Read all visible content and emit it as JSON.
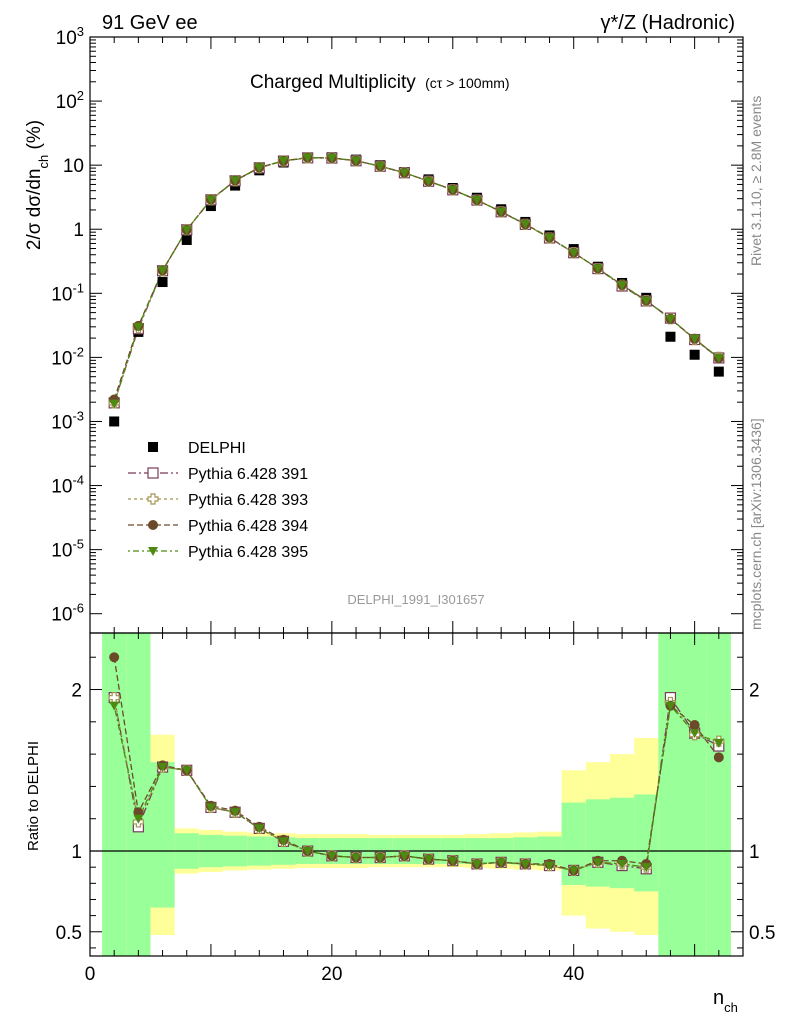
{
  "header": {
    "left": "91 GeV ee",
    "right": "γ*/Z (Hadronic)"
  },
  "side_labels": {
    "rivet": "Rivet 3.1.10, ≥ 2.8M events",
    "mcplots": "mcplots.cern.ch [arXiv:1306.3436]"
  },
  "analysis_id": "DELPHI_1991_I301657",
  "chart_data": [
    {
      "type": "scatter",
      "title": "Charged Multiplicity",
      "title_suffix": "(cτ > 100mm)",
      "ylabel": "2/σ dσ/dn_ch (%)",
      "yscale": "log",
      "ylim": [
        5e-07,
        1000
      ],
      "xlim": [
        0,
        54
      ],
      "y_ticks": [
        "10^-6",
        "10^-5",
        "10^-4",
        "10^-3",
        "10^-2",
        "10^-1",
        "1",
        "10",
        "10^2",
        "10^3"
      ],
      "x": [
        2,
        4,
        6,
        8,
        10,
        12,
        14,
        16,
        18,
        20,
        22,
        24,
        26,
        28,
        30,
        32,
        34,
        36,
        38,
        40,
        42,
        44,
        46,
        48,
        50,
        52
      ],
      "legend_position": "lower-left",
      "series": [
        {
          "name": "DELPHI",
          "style": "data",
          "color": "#000000",
          "values": [
            0.001,
            0.025,
            0.15,
            0.68,
            2.3,
            4.8,
            8.3,
            11.0,
            13.0,
            13.3,
            12.2,
            10.0,
            7.8,
            6.0,
            4.4,
            3.1,
            2.05,
            1.3,
            0.8,
            0.49,
            0.26,
            0.145,
            0.085,
            0.021,
            0.011,
            0.006
          ]
        },
        {
          "name": "Pythia 6.428 391",
          "style": "open-square",
          "color": "#7a3b5a",
          "values": [
            0.00195,
            0.028,
            0.225,
            0.98,
            2.88,
            5.7,
            9.1,
            11.6,
            13.0,
            12.9,
            11.7,
            9.6,
            7.6,
            5.6,
            4.12,
            2.85,
            1.87,
            1.19,
            0.73,
            0.43,
            0.243,
            0.13,
            0.076,
            0.041,
            0.019,
            0.0098
          ]
        },
        {
          "name": "Pythia 6.428 393",
          "style": "open-cross",
          "color": "#a39552",
          "values": [
            0.00195,
            0.029,
            0.225,
            0.98,
            2.88,
            5.7,
            9.1,
            11.6,
            13.0,
            12.9,
            11.7,
            9.6,
            7.6,
            5.6,
            4.12,
            2.85,
            1.87,
            1.19,
            0.73,
            0.43,
            0.243,
            0.134,
            0.077,
            0.04,
            0.019,
            0.01
          ]
        },
        {
          "name": "Pythia 6.428 394",
          "style": "filled-circle",
          "color": "#6b4a2a",
          "values": [
            0.0022,
            0.031,
            0.228,
            0.98,
            2.9,
            5.75,
            9.2,
            11.7,
            13.1,
            12.95,
            11.75,
            9.65,
            7.62,
            5.62,
            4.14,
            2.86,
            1.88,
            1.2,
            0.74,
            0.43,
            0.245,
            0.135,
            0.077,
            0.04,
            0.0195,
            0.0097
          ]
        },
        {
          "name": "Pythia 6.428 395",
          "style": "filled-triangle-down",
          "color": "#4e8a12",
          "values": [
            0.0019,
            0.03,
            0.228,
            0.98,
            2.9,
            5.75,
            9.2,
            11.7,
            13.1,
            12.95,
            11.75,
            9.65,
            7.62,
            5.62,
            4.14,
            2.86,
            1.88,
            1.2,
            0.74,
            0.43,
            0.245,
            0.134,
            0.077,
            0.04,
            0.0196,
            0.0098
          ]
        }
      ]
    },
    {
      "type": "scatter",
      "ylabel": "Ratio to DELPHI",
      "xlabel": "n_ch",
      "ylim": [
        0.35,
        2.35
      ],
      "xlim": [
        0,
        54
      ],
      "y_ticks": [
        0.5,
        1,
        2
      ],
      "x_ticks": [
        0,
        20,
        40
      ],
      "reference_line": 1,
      "bands": {
        "x_edges": [
          1,
          3,
          5,
          7,
          9,
          11,
          13,
          15,
          17,
          19,
          21,
          23,
          25,
          27,
          29,
          31,
          33,
          35,
          37,
          39,
          41,
          43,
          45,
          47,
          49,
          51,
          53
        ],
        "inner_low": [
          0.0,
          0.0,
          0.65,
          0.89,
          0.9,
          0.905,
          0.91,
          0.915,
          0.92,
          0.92,
          0.92,
          0.92,
          0.92,
          0.92,
          0.92,
          0.92,
          0.92,
          0.915,
          0.91,
          0.79,
          0.78,
          0.77,
          0.75,
          0.0,
          0.0,
          0.0
        ],
        "inner_high": [
          2.35,
          2.35,
          1.55,
          1.11,
          1.1,
          1.095,
          1.09,
          1.085,
          1.08,
          1.08,
          1.08,
          1.08,
          1.08,
          1.08,
          1.08,
          1.08,
          1.08,
          1.085,
          1.09,
          1.3,
          1.32,
          1.33,
          1.35,
          2.35,
          2.35,
          2.35
        ],
        "outer_low": [
          0.0,
          0.0,
          0.48,
          0.86,
          0.87,
          0.88,
          0.885,
          0.89,
          0.895,
          0.895,
          0.895,
          0.9,
          0.9,
          0.9,
          0.9,
          0.895,
          0.89,
          0.885,
          0.88,
          0.6,
          0.52,
          0.5,
          0.48,
          0.0,
          0.0,
          0.0
        ],
        "outer_high": [
          2.35,
          2.35,
          1.72,
          1.14,
          1.13,
          1.12,
          1.115,
          1.11,
          1.105,
          1.105,
          1.105,
          1.1,
          1.1,
          1.1,
          1.1,
          1.105,
          1.11,
          1.115,
          1.12,
          1.5,
          1.55,
          1.6,
          1.7,
          2.35,
          2.35,
          1.85
        ]
      },
      "series": [
        {
          "name": "Pythia 6.428 391",
          "color": "#7a3b5a",
          "style": "open-square",
          "values": [
            1.95,
            1.15,
            1.52,
            1.5,
            1.27,
            1.24,
            1.14,
            1.06,
            1.0,
            0.97,
            0.96,
            0.96,
            0.97,
            0.95,
            0.94,
            0.92,
            0.93,
            0.92,
            0.91,
            0.88,
            0.93,
            0.91,
            0.89,
            1.95,
            1.73,
            1.65
          ]
        },
        {
          "name": "Pythia 6.428 393",
          "color": "#a39552",
          "style": "open-cross",
          "values": [
            1.95,
            1.18,
            1.52,
            1.5,
            1.27,
            1.24,
            1.14,
            1.06,
            1.0,
            0.97,
            0.96,
            0.96,
            0.97,
            0.95,
            0.94,
            0.92,
            0.93,
            0.92,
            0.91,
            0.88,
            0.93,
            0.92,
            0.9,
            1.92,
            1.72,
            1.68
          ]
        },
        {
          "name": "Pythia 6.428 394",
          "color": "#6b4a2a",
          "style": "filled-circle",
          "values": [
            2.2,
            1.24,
            1.53,
            1.5,
            1.28,
            1.25,
            1.15,
            1.07,
            1.0,
            0.97,
            0.96,
            0.96,
            0.97,
            0.95,
            0.94,
            0.92,
            0.93,
            0.92,
            0.92,
            0.88,
            0.94,
            0.94,
            0.92,
            1.9,
            1.78,
            1.58
          ]
        },
        {
          "name": "Pythia 6.428 395",
          "color": "#4e8a12",
          "style": "filled-triangle-down",
          "values": [
            1.9,
            1.2,
            1.52,
            1.5,
            1.27,
            1.24,
            1.14,
            1.06,
            1.0,
            0.97,
            0.96,
            0.96,
            0.97,
            0.95,
            0.94,
            0.92,
            0.93,
            0.92,
            0.91,
            0.88,
            0.93,
            0.92,
            0.9,
            1.9,
            1.73,
            1.67
          ]
        }
      ]
    }
  ]
}
